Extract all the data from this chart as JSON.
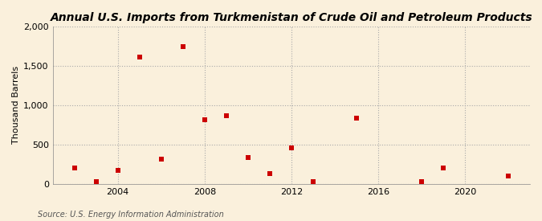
{
  "title": "Annual U.S. Imports from Turkmenistan of Crude Oil and Petroleum Products",
  "ylabel": "Thousand Barrels",
  "source": "Source: U.S. Energy Information Administration",
  "years": [
    2002,
    2003,
    2004,
    2005,
    2006,
    2007,
    2008,
    2009,
    2010,
    2011,
    2012,
    2013,
    2015,
    2018,
    2019,
    2022
  ],
  "values": [
    200,
    30,
    175,
    1610,
    310,
    1740,
    810,
    870,
    330,
    125,
    455,
    30,
    830,
    30,
    205,
    100
  ],
  "marker_color": "#CC0000",
  "marker": "s",
  "marker_size": 16,
  "background_color": "#FAF0DC",
  "grid_color": "#AAAAAA",
  "ylim": [
    0,
    2000
  ],
  "yticks": [
    0,
    500,
    1000,
    1500,
    2000
  ],
  "ytick_labels": [
    "0",
    "500",
    "1,000",
    "1,500",
    "2,000"
  ],
  "xlim": [
    2001,
    2023
  ],
  "xticks": [
    2004,
    2008,
    2012,
    2016,
    2020
  ],
  "title_fontsize": 10,
  "label_fontsize": 8,
  "tick_fontsize": 8,
  "source_fontsize": 7
}
